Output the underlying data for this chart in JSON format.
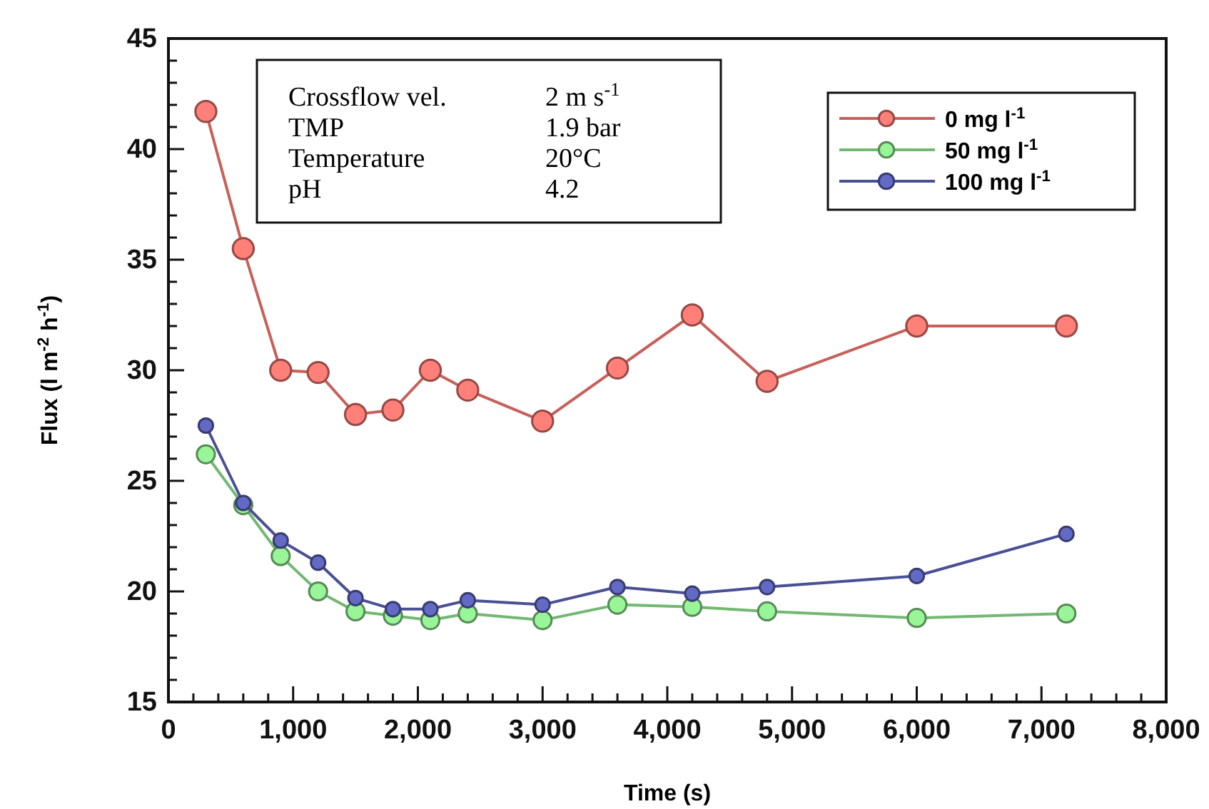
{
  "chart_data": {
    "type": "line",
    "xlabel": "Time (s)",
    "ylabel": "Flux (l m$^{-2}$ h$^{-1}$)",
    "x": [
      300,
      600,
      900,
      1200,
      1500,
      1800,
      2100,
      2400,
      3000,
      3600,
      4200,
      4800,
      6000,
      7200
    ],
    "series": [
      {
        "name": "0 mg l$^{-1}$",
        "color": "#c8605a",
        "values": [
          41.7,
          35.5,
          30.0,
          29.9,
          28.0,
          28.2,
          30.0,
          29.1,
          27.7,
          30.1,
          32.5,
          29.5,
          32.0,
          32.0
        ]
      },
      {
        "name": "50 mg l$^{-1}$",
        "color": "#72b872",
        "values": [
          26.2,
          23.9,
          21.6,
          20.0,
          19.1,
          18.9,
          18.7,
          19.0,
          18.7,
          19.4,
          19.3,
          19.1,
          18.8,
          19.0
        ]
      },
      {
        "name": "100 mg l$^{-1}$",
        "color": "#4a5095",
        "values": [
          27.5,
          24.0,
          22.3,
          21.3,
          19.7,
          19.2,
          19.2,
          19.6,
          19.4,
          20.2,
          19.9,
          20.2,
          20.7,
          22.6
        ]
      }
    ],
    "xlim": [
      0,
      8000
    ],
    "xticks": [
      0,
      {
        "value": 200,
        "label": null
      },
      {
        "value": 400,
        "label": null
      },
      {
        "value": 600,
        "label": null
      },
      {
        "value": 800,
        "label": null
      },
      {
        "value": 1000,
        "label": "1,000"
      },
      {
        "value": 1200,
        "label": null
      },
      {
        "value": 1400,
        "label": null
      },
      {
        "value": 1600,
        "label": null
      },
      {
        "value": 1800,
        "label": null
      },
      {
        "value": 2000,
        "label": "2,000"
      },
      {
        "value": 2200,
        "label": null
      },
      {
        "value": 2400,
        "label": null
      },
      {
        "value": 2600,
        "label": null
      },
      {
        "value": 2800,
        "label": null
      },
      {
        "value": 3000,
        "label": "3,000"
      },
      {
        "value": 3200,
        "label": null
      },
      {
        "value": 3400,
        "label": null
      },
      {
        "value": 3600,
        "label": null
      },
      {
        "value": 3800,
        "label": null
      },
      {
        "value": 4000,
        "label": "4,000"
      },
      {
        "value": 4200,
        "label": null
      },
      {
        "value": 4400,
        "label": null
      },
      {
        "value": 4600,
        "label": null
      },
      {
        "value": 4800,
        "label": null
      },
      {
        "value": 5000,
        "label": "5,000"
      },
      {
        "value": 5200,
        "label": null
      },
      {
        "value": 5400,
        "label": null
      },
      {
        "value": 5600,
        "label": null
      },
      {
        "value": 5800,
        "label": null
      },
      {
        "value": 6000,
        "label": "6,000"
      },
      {
        "value": 6200,
        "label": null
      },
      {
        "value": 6400,
        "label": null
      },
      {
        "value": 6600,
        "label": null
      },
      {
        "value": 6800,
        "label": null
      },
      {
        "value": 7000,
        "label": "7,000"
      },
      {
        "value": 7200,
        "label": null
      },
      {
        "value": 7400,
        "label": null
      },
      {
        "value": 7600,
        "label": null
      },
      {
        "value": 7800,
        "label": null
      },
      {
        "value": 8000,
        "label": "8,000"
      }
    ],
    "ylim": [
      15,
      45
    ],
    "yticks": [
      15,
      {
        "value": 16,
        "label": null
      },
      {
        "value": 17,
        "label": null
      },
      {
        "value": 18,
        "label": null
      },
      {
        "value": 19,
        "label": null
      },
      20,
      {
        "value": 21,
        "label": null
      },
      {
        "value": 22,
        "label": null
      },
      {
        "value": 23,
        "label": null
      },
      {
        "value": 24,
        "label": null
      },
      25,
      {
        "value": 26,
        "label": null
      },
      {
        "value": 27,
        "label": null
      },
      {
        "value": 28,
        "label": null
      },
      {
        "value": 29,
        "label": null
      },
      30,
      {
        "value": 31,
        "label": null
      },
      {
        "value": 32,
        "label": null
      },
      {
        "value": 33,
        "label": null
      },
      {
        "value": 34,
        "label": null
      },
      35,
      {
        "value": 36,
        "label": null
      },
      {
        "value": 37,
        "label": null
      },
      {
        "value": 38,
        "label": null
      },
      {
        "value": 39,
        "label": null
      },
      40,
      {
        "value": 41,
        "label": null
      },
      {
        "value": 42,
        "label": null
      },
      {
        "value": 43,
        "label": null
      },
      {
        "value": 44,
        "label": null
      },
      45
    ],
    "annotations": [
      "Crossflow vel.",
      "2 m s$^{-1}$",
      "TMP",
      "1.9 bar",
      "Temperature",
      "20°C",
      "pH",
      "4.2"
    ],
    "legend": "top right",
    "marker": "circle",
    "line_style": "solid",
    "grid": false
  }
}
